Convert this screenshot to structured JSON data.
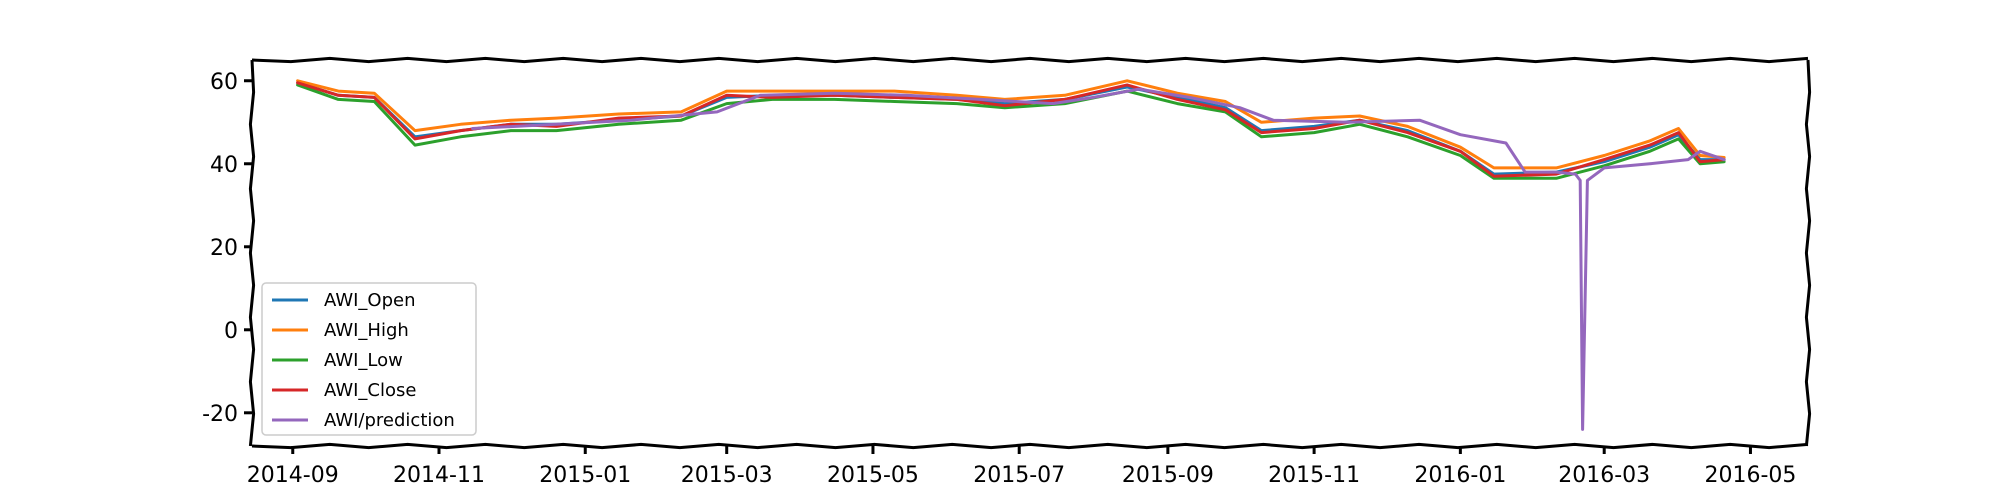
{
  "chart_data": {
    "type": "line",
    "title": "",
    "xlabel": "",
    "ylabel": "",
    "grid": false,
    "legend_placement": "lower-left",
    "xlim": [
      "2014-08-15",
      "2016-05-25"
    ],
    "ylim": [
      -28,
      65
    ],
    "x_ticks": [
      "2014-09",
      "2014-11",
      "2015-01",
      "2015-03",
      "2015-05",
      "2015-07",
      "2015-09",
      "2015-11",
      "2016-01",
      "2016-03",
      "2016-05"
    ],
    "y_ticks": [
      60,
      40,
      20,
      0,
      -20
    ],
    "series": [
      {
        "name": "AWI_Open",
        "color": "#1f77b4",
        "points": [
          [
            "2014-09-03",
            59.5
          ],
          [
            "2014-09-20",
            56.5
          ],
          [
            "2014-10-05",
            56.0
          ],
          [
            "2014-10-22",
            46.5
          ],
          [
            "2014-11-10",
            48.0
          ],
          [
            "2014-12-01",
            49.5
          ],
          [
            "2014-12-20",
            49.5
          ],
          [
            "2015-01-15",
            50.5
          ],
          [
            "2015-02-10",
            51.5
          ],
          [
            "2015-03-01",
            56.0
          ],
          [
            "2015-03-20",
            56.5
          ],
          [
            "2015-04-15",
            56.5
          ],
          [
            "2015-05-10",
            56.0
          ],
          [
            "2015-06-05",
            55.5
          ],
          [
            "2015-06-25",
            54.5
          ],
          [
            "2015-07-20",
            55.5
          ],
          [
            "2015-08-15",
            58.5
          ],
          [
            "2015-09-05",
            56.0
          ],
          [
            "2015-09-25",
            53.5
          ],
          [
            "2015-10-10",
            48.0
          ],
          [
            "2015-11-01",
            49.0
          ],
          [
            "2015-11-20",
            50.5
          ],
          [
            "2015-12-10",
            48.0
          ],
          [
            "2016-01-01",
            43.0
          ],
          [
            "2016-01-15",
            37.5
          ],
          [
            "2016-02-10",
            38.0
          ],
          [
            "2016-03-01",
            40.5
          ],
          [
            "2016-03-20",
            44.0
          ],
          [
            "2016-04-01",
            47.0
          ],
          [
            "2016-04-10",
            41.0
          ],
          [
            "2016-04-20",
            41.0
          ]
        ]
      },
      {
        "name": "AWI_High",
        "color": "#ff7f0e",
        "points": [
          [
            "2014-09-03",
            60.0
          ],
          [
            "2014-09-20",
            57.5
          ],
          [
            "2014-10-05",
            57.0
          ],
          [
            "2014-10-22",
            48.0
          ],
          [
            "2014-11-10",
            49.5
          ],
          [
            "2014-12-01",
            50.5
          ],
          [
            "2014-12-20",
            51.0
          ],
          [
            "2015-01-15",
            52.0
          ],
          [
            "2015-02-10",
            52.5
          ],
          [
            "2015-03-01",
            57.5
          ],
          [
            "2015-03-20",
            57.5
          ],
          [
            "2015-04-15",
            57.5
          ],
          [
            "2015-05-10",
            57.5
          ],
          [
            "2015-06-05",
            56.5
          ],
          [
            "2015-06-25",
            55.5
          ],
          [
            "2015-07-20",
            56.5
          ],
          [
            "2015-08-15",
            60.0
          ],
          [
            "2015-09-05",
            57.0
          ],
          [
            "2015-09-25",
            55.0
          ],
          [
            "2015-10-10",
            50.0
          ],
          [
            "2015-11-01",
            51.0
          ],
          [
            "2015-11-20",
            51.5
          ],
          [
            "2015-12-10",
            49.0
          ],
          [
            "2016-01-01",
            44.0
          ],
          [
            "2016-01-15",
            39.0
          ],
          [
            "2016-02-10",
            39.0
          ],
          [
            "2016-03-01",
            42.0
          ],
          [
            "2016-03-20",
            45.5
          ],
          [
            "2016-04-01",
            48.5
          ],
          [
            "2016-04-10",
            42.0
          ],
          [
            "2016-04-20",
            41.5
          ]
        ]
      },
      {
        "name": "AWI_Low",
        "color": "#2ca02c",
        "points": [
          [
            "2014-09-03",
            59.0
          ],
          [
            "2014-09-20",
            55.5
          ],
          [
            "2014-10-05",
            55.0
          ],
          [
            "2014-10-22",
            44.5
          ],
          [
            "2014-11-10",
            46.5
          ],
          [
            "2014-12-01",
            48.0
          ],
          [
            "2014-12-20",
            48.0
          ],
          [
            "2015-01-15",
            49.5
          ],
          [
            "2015-02-10",
            50.5
          ],
          [
            "2015-03-01",
            54.5
          ],
          [
            "2015-03-20",
            55.5
          ],
          [
            "2015-04-15",
            55.5
          ],
          [
            "2015-05-10",
            55.0
          ],
          [
            "2015-06-05",
            54.5
          ],
          [
            "2015-06-25",
            53.5
          ],
          [
            "2015-07-20",
            54.5
          ],
          [
            "2015-08-15",
            57.5
          ],
          [
            "2015-09-05",
            54.5
          ],
          [
            "2015-09-25",
            52.5
          ],
          [
            "2015-10-10",
            46.5
          ],
          [
            "2015-11-01",
            47.5
          ],
          [
            "2015-11-20",
            49.5
          ],
          [
            "2015-12-10",
            46.5
          ],
          [
            "2016-01-01",
            42.0
          ],
          [
            "2016-01-15",
            36.5
          ],
          [
            "2016-02-10",
            36.5
          ],
          [
            "2016-03-01",
            39.5
          ],
          [
            "2016-03-20",
            43.0
          ],
          [
            "2016-04-01",
            46.0
          ],
          [
            "2016-04-10",
            40.0
          ],
          [
            "2016-04-20",
            40.5
          ]
        ]
      },
      {
        "name": "AWI_Close",
        "color": "#d62728",
        "points": [
          [
            "2014-09-03",
            59.5
          ],
          [
            "2014-09-20",
            56.5
          ],
          [
            "2014-10-05",
            56.0
          ],
          [
            "2014-10-22",
            46.0
          ],
          [
            "2014-11-10",
            48.0
          ],
          [
            "2014-12-01",
            49.5
          ],
          [
            "2014-12-20",
            49.0
          ],
          [
            "2015-01-15",
            51.0
          ],
          [
            "2015-02-10",
            51.5
          ],
          [
            "2015-03-01",
            56.5
          ],
          [
            "2015-03-20",
            56.0
          ],
          [
            "2015-04-15",
            56.5
          ],
          [
            "2015-05-10",
            56.0
          ],
          [
            "2015-06-05",
            55.5
          ],
          [
            "2015-06-25",
            54.0
          ],
          [
            "2015-07-20",
            55.5
          ],
          [
            "2015-08-15",
            59.0
          ],
          [
            "2015-09-05",
            55.5
          ],
          [
            "2015-09-25",
            53.0
          ],
          [
            "2015-10-10",
            47.5
          ],
          [
            "2015-11-01",
            48.5
          ],
          [
            "2015-11-20",
            50.5
          ],
          [
            "2015-12-10",
            47.5
          ],
          [
            "2016-01-01",
            43.0
          ],
          [
            "2016-01-15",
            37.0
          ],
          [
            "2016-02-10",
            37.5
          ],
          [
            "2016-03-01",
            41.0
          ],
          [
            "2016-03-20",
            44.5
          ],
          [
            "2016-04-01",
            47.5
          ],
          [
            "2016-04-10",
            40.5
          ],
          [
            "2016-04-20",
            41.0
          ]
        ]
      },
      {
        "name": "AWI/prediction",
        "color": "#9467bd",
        "points": [
          [
            "2014-11-15",
            48.5
          ],
          [
            "2014-12-20",
            49.5
          ],
          [
            "2015-01-20",
            50.5
          ],
          [
            "2015-02-25",
            52.5
          ],
          [
            "2015-03-15",
            56.5
          ],
          [
            "2015-04-15",
            57.0
          ],
          [
            "2015-05-15",
            56.5
          ],
          [
            "2015-06-15",
            55.5
          ],
          [
            "2015-07-15",
            54.5
          ],
          [
            "2015-08-01",
            56.0
          ],
          [
            "2015-08-20",
            58.0
          ],
          [
            "2015-09-10",
            56.0
          ],
          [
            "2015-10-01",
            53.5
          ],
          [
            "2015-10-15",
            50.5
          ],
          [
            "2015-11-15",
            50.0
          ],
          [
            "2015-12-15",
            50.5
          ],
          [
            "2016-01-01",
            47.0
          ],
          [
            "2016-01-20",
            45.0
          ],
          [
            "2016-01-28",
            38.0
          ],
          [
            "2016-02-10",
            38.0
          ],
          [
            "2016-02-18",
            37.5
          ],
          [
            "2016-02-20",
            36.0
          ],
          [
            "2016-02-21",
            -24.0
          ],
          [
            "2016-02-23",
            36.0
          ],
          [
            "2016-03-01",
            39.0
          ],
          [
            "2016-03-20",
            40.0
          ],
          [
            "2016-04-05",
            41.0
          ],
          [
            "2016-04-10",
            43.0
          ],
          [
            "2016-04-20",
            41.0
          ]
        ]
      }
    ]
  }
}
